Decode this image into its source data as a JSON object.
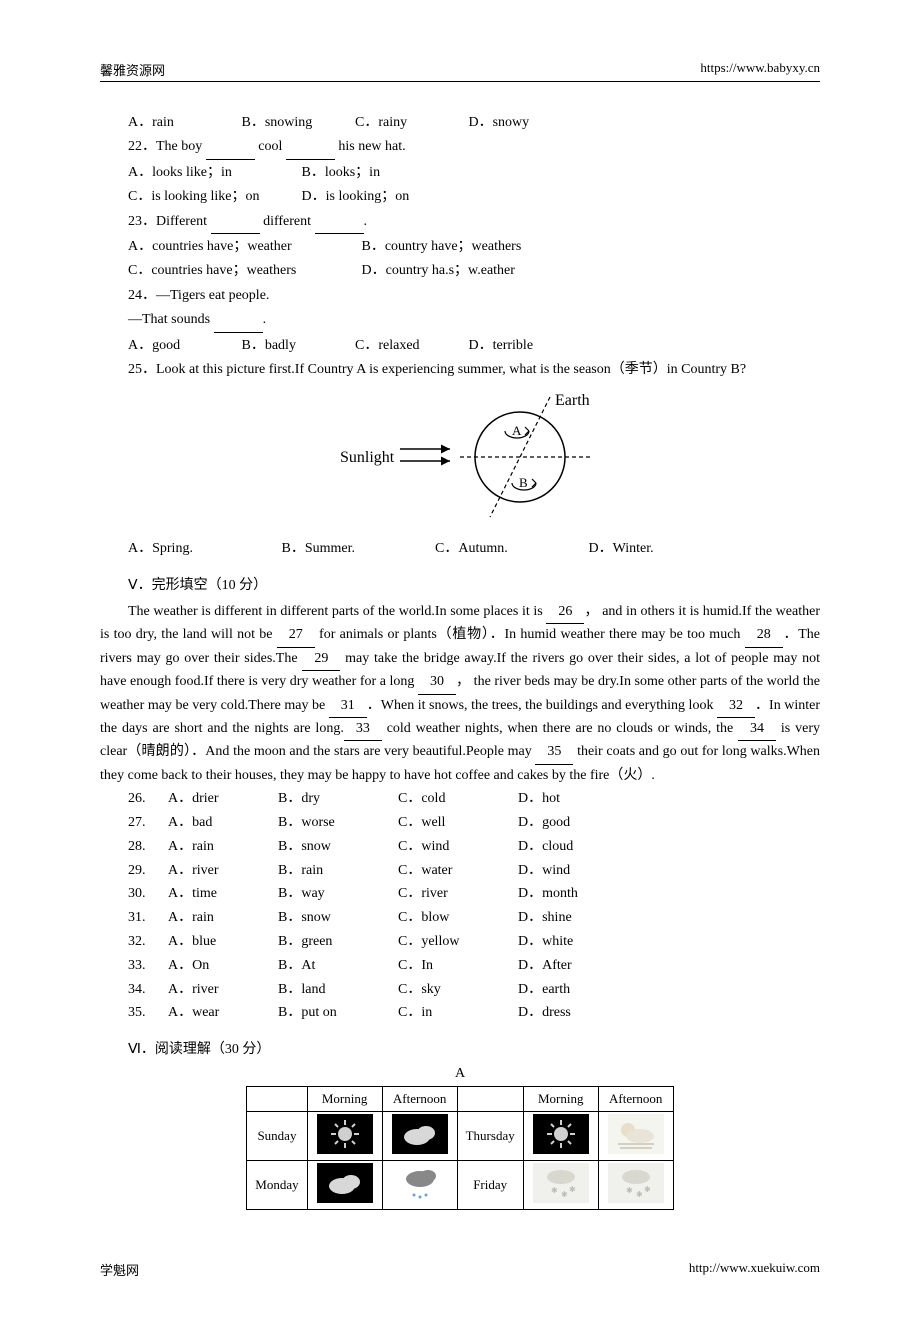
{
  "header": {
    "left": "馨雅资源网",
    "right": "https://www.babyxy.cn"
  },
  "footer": {
    "left": "学魁网",
    "right": "http://www.xuekuiw.com"
  },
  "q21_opts": {
    "a": "A．rain",
    "b": "B．snowing",
    "c": "C．rainy",
    "d": "D．snowy"
  },
  "q22": {
    "stem_a": "22．The boy ",
    "stem_b": " cool ",
    "stem_c": " his new hat."
  },
  "q22_opts": {
    "a": "A．looks like；in",
    "b": "B．looks；in",
    "c": "C．is looking like；on",
    "d": "D．is looking；on"
  },
  "q23": {
    "stem_a": "23．Different ",
    "stem_b": " different ",
    "stem_c": "."
  },
  "q23_opts": {
    "a": "A．countries have；weather",
    "b": "B．country have；weathers",
    "c": "C．countries have；weathers",
    "d": "D．country ha.s；w.eather"
  },
  "q24": {
    "line1": "24．—Tigers eat people.",
    "line2_a": "—That sounds ",
    "line2_b": "."
  },
  "q24_opts": {
    "a": "A．good",
    "b": "B．badly",
    "c": "C．relaxed",
    "d": "D．terrible"
  },
  "q25": {
    "stem": "25．Look at this picture first.If Country A is experiencing summer, what is the season（季节）in Country B?"
  },
  "diagram": {
    "sunlight": "Sunlight",
    "earth": "Earth",
    "a": "A",
    "b": "B"
  },
  "q25_opts": {
    "a": "A．Spring.",
    "b": "B．Summer.",
    "c": "C．Autumn.",
    "d": "D．Winter."
  },
  "section5": "Ⅴ．完形填空（10 分）",
  "passage": {
    "p1a": "The weather is different in different parts of the world.In some places it is ",
    "n26": "26",
    "p1b": "， and in others it is humid.If the weather is too dry, the land will not be ",
    "n27": "27",
    "p1c": " for animals or plants（植物）．In humid weather there may be too much ",
    "n28": "28",
    "p1d": "．The rivers may go over their sides.The ",
    "n29": "29",
    "p1e": " may take the bridge away.If the rivers go over their sides, a lot of people may not have enough food.If there is very dry weather for a long ",
    "n30": "30",
    "p1f": "， the river beds may be dry.In some other parts of the world the weather may be very cold.There may be ",
    "n31": "31",
    "p1g": "．When it snows, the trees, the buildings and everything look ",
    "n32": "32",
    "p1h": "．In winter the days are short and the nights are long.",
    "n33": "33",
    "p1i": " cold weather nights, when there are no clouds or winds, the ",
    "n34": "34",
    "p1j": " is very clear（晴朗的）．And the moon and the stars are very beautiful.People may ",
    "n35": "35",
    "p1k": " their coats and go out for long walks.When they come back to their houses, they may be happy to have hot coffee and cakes by the fire（火）."
  },
  "cloze": [
    {
      "n": "26.",
      "a": "A．drier",
      "b": "B．dry",
      "c": "C．cold",
      "d": "D．hot"
    },
    {
      "n": "27.",
      "a": "A．bad",
      "b": "B．worse",
      "c": "C．well",
      "d": "D．good"
    },
    {
      "n": "28.",
      "a": "A．rain",
      "b": "B．snow",
      "c": "C．wind",
      "d": "D．cloud"
    },
    {
      "n": "29.",
      "a": "A．river",
      "b": "B．rain",
      "c": "C．water",
      "d": "D．wind"
    },
    {
      "n": "30.",
      "a": "A．time",
      "b": "B．way",
      "c": "C．river",
      "d": "D．month"
    },
    {
      "n": "31.",
      "a": "A．rain",
      "b": "B．snow",
      "c": "C．blow",
      "d": "D．shine"
    },
    {
      "n": "32.",
      "a": "A．blue",
      "b": "B．green",
      "c": "C．yellow",
      "d": "D．white"
    },
    {
      "n": "33.",
      "a": "A．On",
      "b": "B．At",
      "c": "C．In",
      "d": "D．After"
    },
    {
      "n": "34.",
      "a": "A．river",
      "b": "B．land",
      "c": "C．sky",
      "d": "D．earth"
    },
    {
      "n": "35.",
      "a": "A．wear",
      "b": "B．put on",
      "c": "C．in",
      "d": "D．dress"
    }
  ],
  "section6": "Ⅵ．阅读理解（30 分）",
  "tableTitle": "A",
  "table": {
    "hMorning": "Morning",
    "hAfternoon": "Afternoon",
    "days": {
      "sun": "Sunday",
      "mon": "Monday",
      "thu": "Thursday",
      "fri": "Friday"
    }
  }
}
